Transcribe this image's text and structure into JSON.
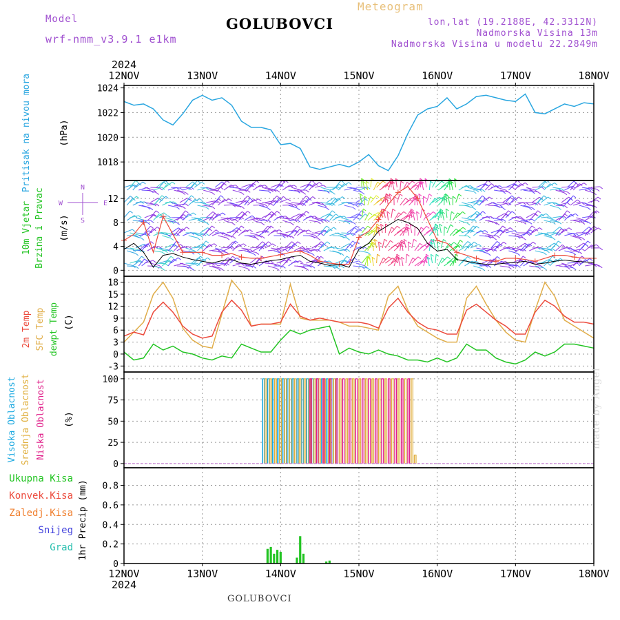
{
  "header": {
    "station": "GOLUBOVCI",
    "meteogram": "Meteogram",
    "model_label": "Model",
    "model_name": "wrf-nmm_v3.9.1  e1km",
    "coords": "lon,lat (19.2188E, 42.3312N)",
    "elevation": "Nadmorska Visina 13m",
    "model_elevation": "Nadmorska Visina u modelu 22.2849m"
  },
  "footer": {
    "station": "GOLUBOVCI",
    "credit": "made by Angel"
  },
  "colors": {
    "pressure": "#29a6e0",
    "temp2m": "#ec4a3c",
    "sfc_temp": "#e0ad48",
    "dewpoint": "#22c422",
    "cloud_high": "#1aa8e0",
    "cloud_mid": "#e0b040",
    "cloud_low": "#e0208a",
    "precip_total": "#22c422",
    "precip_conv": "#ec4a3c",
    "precip_freezing": "#f08030",
    "precip_snow": "#4444dd",
    "precip_hail": "#2cc0b0",
    "wind_speed": "#000000",
    "wind_gust": "#ec4a3c"
  },
  "chart_data": [
    {
      "type": "line",
      "title": "",
      "xlabel": "",
      "ylabel": "Pritisak na nivou mora",
      "unit": "(hPa)",
      "ylim": [
        1016.5,
        1024.2
      ],
      "yticks": [
        1018,
        1020,
        1022,
        1024
      ],
      "x_labels": [
        "12NOV",
        "13NOV",
        "14NOV",
        "15NOV",
        "16NOV",
        "17NOV",
        "18NOV"
      ],
      "x_year": "2024",
      "grid": true,
      "series": [
        {
          "name": "Pritisak na nivou mora",
          "x": [
            0,
            3,
            6,
            9,
            12,
            15,
            18,
            21,
            24,
            27,
            30,
            33,
            36,
            39,
            42,
            45,
            48,
            51,
            54,
            57,
            60,
            63,
            66,
            69,
            72,
            75,
            78,
            81,
            84,
            87,
            90,
            93,
            96,
            99,
            102,
            105,
            108,
            111,
            114,
            117,
            120,
            123,
            126,
            129,
            132,
            135,
            138,
            141,
            144
          ],
          "values": [
            1022.9,
            1022.6,
            1022.7,
            1022.3,
            1021.4,
            1021.0,
            1021.9,
            1023.0,
            1023.4,
            1023.0,
            1023.2,
            1022.6,
            1021.3,
            1020.8,
            1020.8,
            1020.6,
            1019.4,
            1019.5,
            1019.1,
            1017.6,
            1017.4,
            1017.6,
            1017.8,
            1017.6,
            1018.0,
            1018.6,
            1017.7,
            1017.3,
            1018.5,
            1020.3,
            1021.8,
            1022.3,
            1022.5,
            1023.2,
            1022.3,
            1022.7,
            1023.3,
            1023.4,
            1023.2,
            1023.0,
            1022.9,
            1023.5,
            1022.0,
            1021.9,
            1022.3,
            1022.7,
            1022.5,
            1022.8,
            1022.7
          ]
        }
      ]
    },
    {
      "type": "line",
      "title": "",
      "xlabel": "",
      "ylabel": "10m Vjetar Brzina i Pravac",
      "unit": "(m/s)",
      "ylim": [
        -1,
        15
      ],
      "yticks": [
        0,
        4,
        8,
        12
      ],
      "legend": {
        "north": "N",
        "south": "S",
        "west": "W",
        "east": "E"
      },
      "grid": true,
      "series": [
        {
          "name": "wind speed",
          "x": [
            0,
            3,
            6,
            9,
            12,
            15,
            18,
            21,
            24,
            27,
            30,
            33,
            36,
            39,
            42,
            45,
            48,
            51,
            54,
            57,
            60,
            63,
            66,
            69,
            72,
            75,
            78,
            81,
            84,
            87,
            90,
            93,
            96,
            99,
            102,
            105,
            108,
            111,
            114,
            117,
            120,
            123,
            126,
            129,
            132,
            135,
            138,
            141,
            144
          ],
          "values": [
            3.5,
            4.5,
            3.0,
            0.5,
            2.5,
            2.8,
            2.2,
            1.8,
            1.5,
            1.2,
            1.6,
            1.8,
            1.2,
            1.0,
            1.3,
            1.6,
            1.8,
            2.2,
            2.5,
            1.5,
            1.2,
            0.8,
            1.0,
            0.5,
            3.5,
            4.5,
            6.5,
            7.5,
            8.5,
            8.0,
            7.0,
            4.5,
            3.2,
            3.5,
            1.8,
            1.5,
            1.2,
            1.0,
            1.0,
            1.2,
            1.3,
            1.5,
            1.0,
            1.2,
            1.5,
            1.7,
            1.5,
            1.4,
            1.3
          ]
        },
        {
          "name": "wind gust",
          "x": [
            0,
            3,
            6,
            9,
            12,
            15,
            18,
            21,
            24,
            27,
            30,
            33,
            36,
            39,
            42,
            45,
            48,
            51,
            54,
            57,
            60,
            63,
            66,
            69,
            72,
            75,
            78,
            81,
            84,
            87,
            90,
            93,
            96,
            99,
            102,
            105,
            108,
            111,
            114,
            117,
            120,
            123,
            126,
            129,
            132,
            135,
            138,
            141,
            144
          ],
          "values": [
            5,
            6,
            8,
            3,
            9,
            6,
            3,
            3,
            3,
            2.5,
            2.5,
            2.8,
            2.2,
            2.0,
            2.0,
            2.3,
            2.6,
            3.0,
            3.2,
            2.5,
            1.5,
            1.2,
            1.0,
            1.0,
            5.5,
            6.5,
            8.5,
            11,
            13,
            14,
            12,
            8.5,
            5,
            4.5,
            3,
            2.5,
            2.0,
            1.6,
            1.5,
            2.0,
            2.0,
            1.8,
            1.5,
            2.0,
            2.5,
            2.5,
            2.2,
            2.0,
            2.0
          ]
        }
      ]
    },
    {
      "type": "line",
      "title": "",
      "xlabel": "",
      "ylabel": "2m Temp / SFC Temp / dewpt Temp",
      "unit": "(C)",
      "ylim": [
        -4.5,
        19.5
      ],
      "yticks": [
        -3,
        0,
        3,
        6,
        9,
        12,
        15,
        18
      ],
      "grid": true,
      "series": [
        {
          "name": "2m Temp",
          "x": [
            0,
            3,
            6,
            9,
            12,
            15,
            18,
            21,
            24,
            27,
            30,
            33,
            36,
            39,
            42,
            45,
            48,
            51,
            54,
            57,
            60,
            63,
            66,
            69,
            72,
            75,
            78,
            81,
            84,
            87,
            90,
            93,
            96,
            99,
            102,
            105,
            108,
            111,
            114,
            117,
            120,
            123,
            126,
            129,
            132,
            135,
            138,
            141,
            144
          ],
          "values": [
            4.5,
            5.5,
            4.8,
            10.5,
            13.0,
            10.5,
            7.0,
            5.0,
            4.0,
            4.5,
            10.5,
            13.5,
            11.0,
            7.0,
            7.5,
            7.5,
            8.0,
            12.5,
            9.5,
            8.5,
            9.0,
            8.5,
            8.0,
            8.0,
            8.0,
            7.5,
            6.5,
            11.5,
            14.0,
            10.5,
            8.0,
            6.5,
            6.0,
            5.0,
            5.0,
            11.0,
            12.5,
            10.5,
            8.5,
            7.0,
            5.0,
            5.0,
            10.5,
            13.5,
            12.0,
            9.5,
            8.0,
            8.0,
            7.5
          ]
        },
        {
          "name": "SFC Temp",
          "x": [
            0,
            3,
            6,
            9,
            12,
            15,
            18,
            21,
            24,
            27,
            30,
            33,
            36,
            39,
            42,
            45,
            48,
            51,
            54,
            57,
            60,
            63,
            66,
            69,
            72,
            75,
            78,
            81,
            84,
            87,
            90,
            93,
            96,
            99,
            102,
            105,
            108,
            111,
            114,
            117,
            120,
            123,
            126,
            129,
            132,
            135,
            138,
            141,
            144
          ],
          "values": [
            3.0,
            5.5,
            8.0,
            15.0,
            18.0,
            14.0,
            6.5,
            3.5,
            2.0,
            1.5,
            10.0,
            18.5,
            15.5,
            7.0,
            7.5,
            7.5,
            7.5,
            17.5,
            9.0,
            8.5,
            8.5,
            8.5,
            8.0,
            7.0,
            7.0,
            6.5,
            6.0,
            14.5,
            17.0,
            11.0,
            7.0,
            5.5,
            4.0,
            3.0,
            3.0,
            14.0,
            17.0,
            12.5,
            8.5,
            5.5,
            3.5,
            3.0,
            11.0,
            18.0,
            14.5,
            8.5,
            7.0,
            5.5,
            4.0
          ]
        },
        {
          "name": "dewpt Temp",
          "x": [
            0,
            3,
            6,
            9,
            12,
            15,
            18,
            21,
            24,
            27,
            30,
            33,
            36,
            39,
            42,
            45,
            48,
            51,
            54,
            57,
            60,
            63,
            66,
            69,
            72,
            75,
            78,
            81,
            84,
            87,
            90,
            93,
            96,
            99,
            102,
            105,
            108,
            111,
            114,
            117,
            120,
            123,
            126,
            129,
            132,
            135,
            138,
            141,
            144
          ],
          "values": [
            0.5,
            -1.5,
            -1.0,
            2.5,
            1.0,
            2.0,
            0.5,
            0.0,
            -1.0,
            -1.5,
            -0.5,
            -1.0,
            2.5,
            1.5,
            0.5,
            0.5,
            3.5,
            6.0,
            5.0,
            6.0,
            6.5,
            7.0,
            0.0,
            1.5,
            0.5,
            0.0,
            1.0,
            0.0,
            -0.5,
            -1.5,
            -1.5,
            -2.0,
            -1.0,
            -2.0,
            -1.0,
            2.5,
            1.0,
            1.0,
            -1.0,
            -2.0,
            -2.5,
            -1.5,
            0.5,
            -0.5,
            0.5,
            2.5,
            2.5,
            2.0,
            1.5
          ]
        }
      ]
    },
    {
      "type": "bar",
      "title": "",
      "xlabel": "",
      "ylabel": "Visoka Oblacnost / Srednja Oblacnost / Niska Oblacnost",
      "unit": "(%)",
      "ylim": [
        -5,
        108
      ],
      "yticks": [
        0,
        25,
        50,
        75,
        100
      ],
      "grid": true,
      "series": [
        {
          "name": "Visoka Oblacnost",
          "x": [
            42.5,
            44,
            45.5,
            47,
            48.5,
            50,
            51.5,
            53,
            54.5,
            56,
            57.5,
            59,
            60.5,
            62,
            63.5,
            65
          ],
          "values": [
            100,
            100,
            100,
            100,
            100,
            100,
            100,
            100,
            100,
            100,
            100,
            100,
            100,
            100,
            100,
            100
          ]
        },
        {
          "name": "Srednja Oblacnost",
          "x": [
            43.2,
            44.7,
            46.2,
            47.7,
            49.2,
            50.7,
            52.2,
            53.7,
            55.2,
            56.7,
            58.2,
            59.7,
            61.2,
            62.7,
            64.2,
            66,
            68,
            70,
            72,
            74,
            76,
            78,
            80,
            82,
            84,
            86,
            88,
            89
          ],
          "values": [
            100,
            100,
            100,
            100,
            100,
            100,
            100,
            100,
            100,
            100,
            100,
            100,
            100,
            100,
            100,
            100,
            100,
            100,
            100,
            100,
            100,
            100,
            100,
            100,
            100,
            100,
            100,
            10
          ]
        },
        {
          "name": "Niska Oblacnost",
          "x": [
            57,
            59,
            61,
            63,
            65,
            67,
            69,
            71,
            73,
            75,
            77,
            79,
            81,
            83,
            85,
            87
          ],
          "values": [
            100,
            100,
            100,
            100,
            100,
            100,
            100,
            100,
            100,
            100,
            100,
            100,
            100,
            100,
            100,
            100
          ]
        }
      ]
    },
    {
      "type": "bar",
      "title": "",
      "xlabel": "",
      "ylabel": "1hr Precip",
      "unit": "(mm)",
      "ylim": [
        0,
        0.98
      ],
      "yticks": [
        0,
        0.2,
        0.4,
        0.6,
        0.8
      ],
      "grid": true,
      "legend": [
        "Ukupna Kisa",
        "Konvek.Kisa",
        "Zaledj.Kisa",
        "Snijeg",
        "Grad"
      ],
      "series": [
        {
          "name": "Ukupna Kisa",
          "x": [
            44,
            45,
            46,
            47,
            48,
            53,
            54,
            55,
            62,
            63
          ],
          "values": [
            0.15,
            0.17,
            0.1,
            0.14,
            0.12,
            0.06,
            0.28,
            0.1,
            0.02,
            0.03
          ]
        }
      ]
    }
  ]
}
